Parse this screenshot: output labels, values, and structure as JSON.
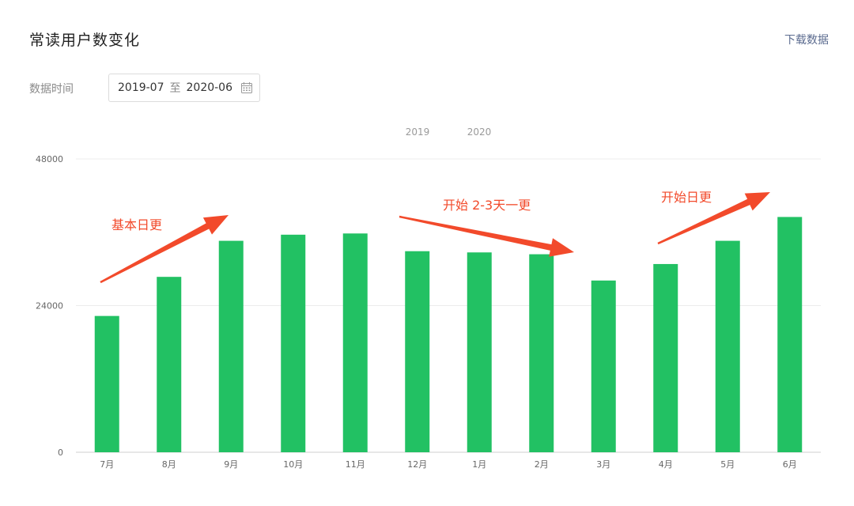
{
  "header": {
    "title": "常读用户数变化",
    "download_label": "下载数据"
  },
  "filter": {
    "label": "数据时间",
    "start": "2019-07",
    "separator": "至",
    "end": "2020-06"
  },
  "chart_data": {
    "type": "bar",
    "title": "",
    "xlabel": "",
    "ylabel": "",
    "ylim": [
      0,
      48000
    ],
    "yticks": [
      "0",
      "24000",
      "48000"
    ],
    "ytick_values": [
      0,
      24000,
      48000
    ],
    "legend": [
      "2019",
      "2020"
    ],
    "categories": [
      "7月",
      "8月",
      "9月",
      "10月",
      "11月",
      "12月",
      "1月",
      "2月",
      "3月",
      "4月",
      "5月",
      "6月"
    ],
    "values": [
      22300,
      28700,
      34600,
      35600,
      35800,
      32900,
      32700,
      32400,
      28100,
      30800,
      34600,
      38500
    ],
    "bar_color": "#22c163",
    "grid": true,
    "annotations": [
      {
        "text": "基本日更",
        "color": "#f24a2b"
      },
      {
        "text": "开始 2-3天一更",
        "color": "#f24a2b"
      },
      {
        "text": "开始日更",
        "color": "#f24a2b"
      }
    ]
  }
}
